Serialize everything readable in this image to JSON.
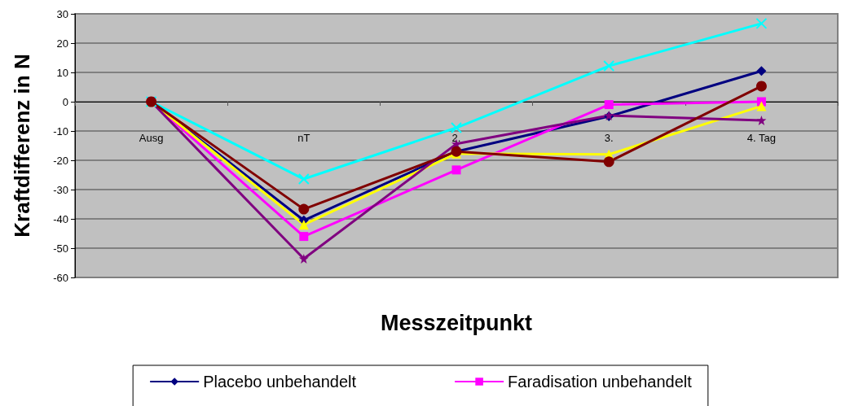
{
  "chart_data": {
    "type": "line",
    "xlabel": "Messzeitpunkt",
    "ylabel": "Kraftdifferenz in N",
    "categories": [
      "Ausg",
      "nT",
      "2.",
      "3.",
      "4. Tag"
    ],
    "series": [
      {
        "name": "Placebo unbehandelt",
        "color": "#000080",
        "marker": "diamond",
        "values": [
          0,
          -40.5,
          -17,
          -5,
          10.5
        ]
      },
      {
        "name": "Faradisation unbehandelt",
        "color": "#ff00ff",
        "marker": "square",
        "values": [
          0,
          -46,
          -23.3,
          -1,
          0
        ]
      },
      {
        "color": "#ffff00",
        "marker": "triangle",
        "values": [
          0,
          -42,
          -17.7,
          -18,
          -1.5
        ]
      },
      {
        "color": "#00ffff",
        "marker": "cross",
        "values": [
          0,
          -26.4,
          -8.9,
          12.2,
          26.7
        ]
      },
      {
        "color": "#800080",
        "marker": "star",
        "values": [
          0,
          -53.6,
          -14.4,
          -4.7,
          -6.4
        ]
      },
      {
        "color": "#800000",
        "marker": "circle",
        "values": [
          0,
          -36.7,
          -17,
          -20.5,
          5.3
        ]
      }
    ],
    "ylim": [
      -60,
      30
    ],
    "yticks": [
      30,
      20,
      10,
      0,
      -10,
      -20,
      -30,
      -40,
      -50,
      -60
    ],
    "grid": "y",
    "legend": "bottom"
  }
}
